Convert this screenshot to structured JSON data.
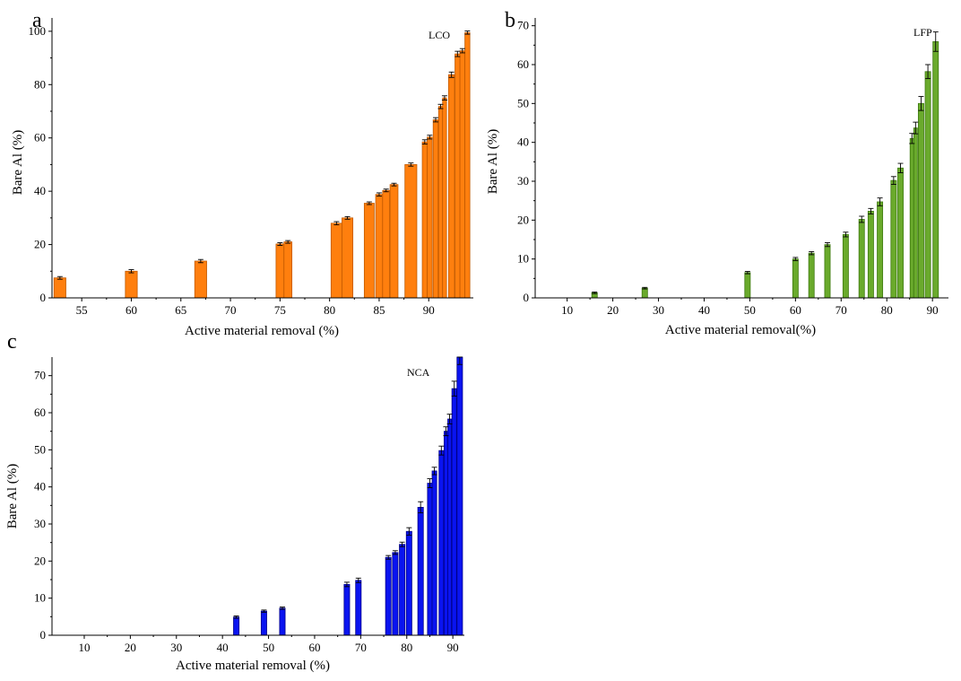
{
  "chart_data": [
    {
      "type": "bar",
      "panel": "a",
      "series_name": "LCO",
      "color": "#ff7f0e",
      "edge_color": "#c25a00",
      "xlabel": "Active material removal (%)",
      "ylabel": "Bare Al (%)",
      "xlim": [
        52,
        94.5
      ],
      "ylim": [
        0,
        105
      ],
      "xticks": [
        55,
        60,
        65,
        70,
        75,
        80,
        85,
        90
      ],
      "yticks": [
        0,
        20,
        40,
        60,
        80,
        100
      ],
      "points": [
        {
          "x": 52.8,
          "y": 7.5,
          "err": 0.5
        },
        {
          "x": 60.0,
          "y": 10.0,
          "err": 0.6
        },
        {
          "x": 67.0,
          "y": 13.8,
          "err": 0.6
        },
        {
          "x": 75.0,
          "y": 20.2,
          "err": 0.5
        },
        {
          "x": 75.8,
          "y": 21.0,
          "err": 0.5
        },
        {
          "x": 80.7,
          "y": 28.0,
          "err": 0.6
        },
        {
          "x": 81.8,
          "y": 30.0,
          "err": 0.5
        },
        {
          "x": 84.0,
          "y": 35.5,
          "err": 0.5
        },
        {
          "x": 85.0,
          "y": 38.8,
          "err": 0.6
        },
        {
          "x": 85.7,
          "y": 40.3,
          "err": 0.5
        },
        {
          "x": 86.5,
          "y": 42.5,
          "err": 0.5
        },
        {
          "x": 88.2,
          "y": 50.0,
          "err": 0.6
        },
        {
          "x": 89.6,
          "y": 58.5,
          "err": 0.8
        },
        {
          "x": 90.1,
          "y": 60.3,
          "err": 0.7
        },
        {
          "x": 90.7,
          "y": 66.8,
          "err": 0.8
        },
        {
          "x": 91.2,
          "y": 71.8,
          "err": 0.8
        },
        {
          "x": 91.6,
          "y": 75.0,
          "err": 0.8
        },
        {
          "x": 92.3,
          "y": 83.7,
          "err": 1.0
        },
        {
          "x": 92.9,
          "y": 91.5,
          "err": 1.0
        },
        {
          "x": 93.4,
          "y": 92.7,
          "err": 0.8
        },
        {
          "x": 93.9,
          "y": 99.5,
          "err": 0.6
        }
      ]
    },
    {
      "type": "bar",
      "panel": "b",
      "series_name": "LFP",
      "color": "#6aaa2c",
      "edge_color": "#3e7a10",
      "xlabel": "Active material removal(%)",
      "ylabel": "Bare Al (%)",
      "xlim": [
        3,
        93.5
      ],
      "ylim": [
        0,
        72
      ],
      "xticks": [
        10,
        20,
        30,
        40,
        50,
        60,
        70,
        80,
        90
      ],
      "yticks": [
        0,
        10,
        20,
        30,
        40,
        50,
        60,
        70
      ],
      "points": [
        {
          "x": 16.0,
          "y": 1.3,
          "err": 0.2
        },
        {
          "x": 27.0,
          "y": 2.5,
          "err": 0.2
        },
        {
          "x": 49.5,
          "y": 6.5,
          "err": 0.3
        },
        {
          "x": 60.0,
          "y": 10.0,
          "err": 0.4
        },
        {
          "x": 63.5,
          "y": 11.5,
          "err": 0.4
        },
        {
          "x": 67.0,
          "y": 13.7,
          "err": 0.5
        },
        {
          "x": 71.0,
          "y": 16.3,
          "err": 0.6
        },
        {
          "x": 74.5,
          "y": 20.2,
          "err": 0.8
        },
        {
          "x": 76.5,
          "y": 22.3,
          "err": 0.7
        },
        {
          "x": 78.5,
          "y": 24.7,
          "err": 1.0
        },
        {
          "x": 81.5,
          "y": 30.2,
          "err": 1.0
        },
        {
          "x": 83.0,
          "y": 33.4,
          "err": 1.2
        },
        {
          "x": 85.5,
          "y": 41.0,
          "err": 1.3
        },
        {
          "x": 86.3,
          "y": 43.7,
          "err": 1.5
        },
        {
          "x": 87.5,
          "y": 50.0,
          "err": 1.8
        },
        {
          "x": 89.0,
          "y": 58.2,
          "err": 1.8
        },
        {
          "x": 90.7,
          "y": 65.9,
          "err": 2.5
        }
      ]
    },
    {
      "type": "bar",
      "panel": "c",
      "series_name": "NCA",
      "color": "#0a14f0",
      "edge_color": "#00008a",
      "xlabel": "Active material removal (%)",
      "ylabel": "Bare Al (%)",
      "xlim": [
        3,
        92.5
      ],
      "ylim": [
        0,
        75
      ],
      "xticks": [
        10,
        20,
        30,
        40,
        50,
        60,
        70,
        80,
        90
      ],
      "yticks": [
        0,
        10,
        20,
        30,
        40,
        50,
        60,
        70
      ],
      "points": [
        {
          "x": 43.0,
          "y": 4.9,
          "err": 0.3
        },
        {
          "x": 49.0,
          "y": 6.5,
          "err": 0.3
        },
        {
          "x": 53.0,
          "y": 7.3,
          "err": 0.3
        },
        {
          "x": 67.0,
          "y": 13.7,
          "err": 0.6
        },
        {
          "x": 69.5,
          "y": 14.8,
          "err": 0.6
        },
        {
          "x": 76.0,
          "y": 21.0,
          "err": 0.5
        },
        {
          "x": 77.5,
          "y": 22.3,
          "err": 0.5
        },
        {
          "x": 79.0,
          "y": 24.5,
          "err": 0.6
        },
        {
          "x": 80.5,
          "y": 28.0,
          "err": 1.0
        },
        {
          "x": 83.0,
          "y": 34.5,
          "err": 1.5
        },
        {
          "x": 85.0,
          "y": 41.0,
          "err": 1.2
        },
        {
          "x": 86.0,
          "y": 44.3,
          "err": 1.0
        },
        {
          "x": 87.5,
          "y": 49.8,
          "err": 1.2
        },
        {
          "x": 88.5,
          "y": 55.0,
          "err": 1.2
        },
        {
          "x": 89.3,
          "y": 58.3,
          "err": 1.3
        },
        {
          "x": 90.3,
          "y": 66.5,
          "err": 2.0
        },
        {
          "x": 91.5,
          "y": 75.0,
          "err": 2.0
        }
      ]
    }
  ]
}
